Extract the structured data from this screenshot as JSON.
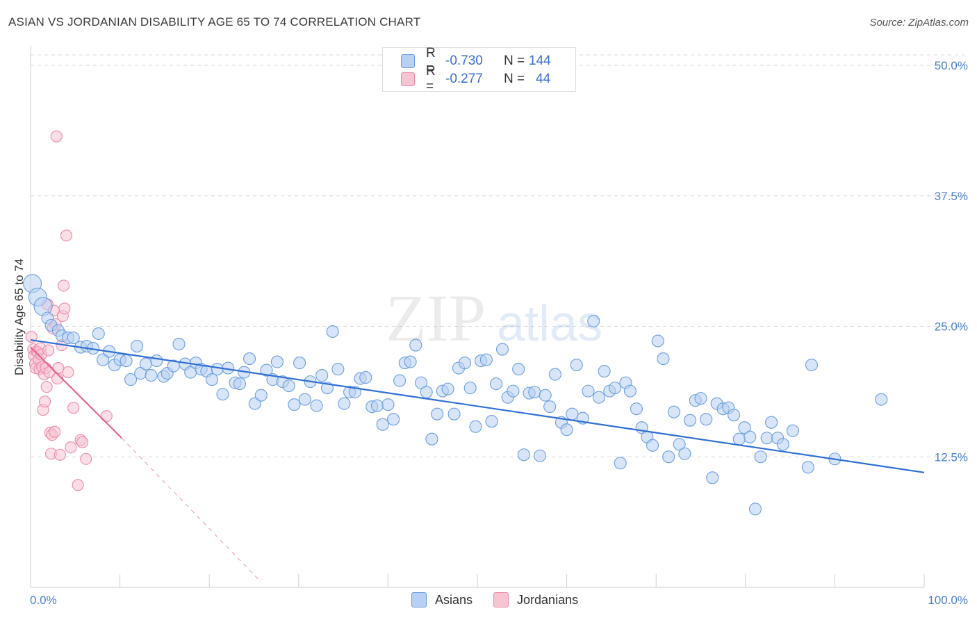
{
  "header": {
    "title": "ASIAN VS JORDANIAN DISABILITY AGE 65 TO 74 CORRELATION CHART",
    "source": "Source: ZipAtlas.com"
  },
  "colors": {
    "asian_fill": "#b8d0f3",
    "asian_stroke": "#6a9ee0",
    "asian_line": "#2f6fd4",
    "jordan_fill": "#f7c4d2",
    "jordan_stroke": "#ec8aa8",
    "jordan_line": "#e46491",
    "tick": "#4a7fd0",
    "grid": "#d8d8d8"
  },
  "legend": {
    "rows": [
      {
        "r_label": "R =",
        "r_value": "-0.730",
        "n_label": "N =",
        "n_value": "144"
      },
      {
        "r_label": "R =",
        "r_value": "-0.277",
        "n_label": "N =",
        "n_value": "44"
      }
    ]
  },
  "bottom_legend": {
    "asians": "Asians",
    "jordanians": "Jordanians"
  },
  "watermark": {
    "zip": "ZIP",
    "atlas": "atlas"
  },
  "chart_data": {
    "type": "scatter",
    "title": "ASIAN VS JORDANIAN DISABILITY AGE 65 TO 74 CORRELATION CHART",
    "ylabel": "Disability Age 65 to 74",
    "xlabel": "",
    "xlim": [
      0,
      100
    ],
    "ylim": [
      0,
      51
    ],
    "x_ticks": [
      {
        "value": 0,
        "label": "0.0%"
      },
      {
        "value": 100,
        "label": "100.0%"
      }
    ],
    "y_ticks": [
      {
        "value": 12.5,
        "label": "12.5%"
      },
      {
        "value": 25.0,
        "label": "25.0%"
      },
      {
        "value": 37.5,
        "label": "37.5%"
      },
      {
        "value": 50.0,
        "label": "50.0%"
      }
    ],
    "grid": true,
    "legend_position": "top-center",
    "series": [
      {
        "name": "Asians",
        "r": -0.73,
        "n": 144,
        "trend": {
          "x": [
            0,
            100
          ],
          "y": [
            23.7,
            11.0
          ]
        },
        "points": [
          [
            0.2,
            29.1
          ],
          [
            0.8,
            27.8
          ],
          [
            1.4,
            26.9
          ],
          [
            1.9,
            25.8
          ],
          [
            2.3,
            25.1
          ],
          [
            3.1,
            24.6
          ],
          [
            3.5,
            24.1
          ],
          [
            4.2,
            23.9
          ],
          [
            4.8,
            23.9
          ],
          [
            5.6,
            23.0
          ],
          [
            6.3,
            23.1
          ],
          [
            7.0,
            22.9
          ],
          [
            7.6,
            24.3
          ],
          [
            8.1,
            21.8
          ],
          [
            8.8,
            22.6
          ],
          [
            9.4,
            21.3
          ],
          [
            10.0,
            21.8
          ],
          [
            10.7,
            21.7
          ],
          [
            11.2,
            19.9
          ],
          [
            11.9,
            23.1
          ],
          [
            12.3,
            20.5
          ],
          [
            12.9,
            21.4
          ],
          [
            13.5,
            20.3
          ],
          [
            14.1,
            21.7
          ],
          [
            14.9,
            20.2
          ],
          [
            15.3,
            20.5
          ],
          [
            16.0,
            21.2
          ],
          [
            16.6,
            23.3
          ],
          [
            17.3,
            21.4
          ],
          [
            17.9,
            20.6
          ],
          [
            18.5,
            21.5
          ],
          [
            19.1,
            20.9
          ],
          [
            19.7,
            20.7
          ],
          [
            20.3,
            19.9
          ],
          [
            20.9,
            20.9
          ],
          [
            21.5,
            18.5
          ],
          [
            22.1,
            21.0
          ],
          [
            22.9,
            19.6
          ],
          [
            23.4,
            19.5
          ],
          [
            23.9,
            20.6
          ],
          [
            24.5,
            21.9
          ],
          [
            25.1,
            17.6
          ],
          [
            25.8,
            18.4
          ],
          [
            26.4,
            20.8
          ],
          [
            27.1,
            19.9
          ],
          [
            27.6,
            21.6
          ],
          [
            28.2,
            19.7
          ],
          [
            28.9,
            19.3
          ],
          [
            29.5,
            17.5
          ],
          [
            30.1,
            21.5
          ],
          [
            30.7,
            18.0
          ],
          [
            31.3,
            19.7
          ],
          [
            32.0,
            17.4
          ],
          [
            32.6,
            20.3
          ],
          [
            33.2,
            19.1
          ],
          [
            33.8,
            24.5
          ],
          [
            34.4,
            20.9
          ],
          [
            35.1,
            17.6
          ],
          [
            35.7,
            18.7
          ],
          [
            36.3,
            18.7
          ],
          [
            36.9,
            20.0
          ],
          [
            37.5,
            20.1
          ],
          [
            38.2,
            17.3
          ],
          [
            38.8,
            17.4
          ],
          [
            39.4,
            15.6
          ],
          [
            40.0,
            17.5
          ],
          [
            40.6,
            16.1
          ],
          [
            41.3,
            19.8
          ],
          [
            41.9,
            21.5
          ],
          [
            42.5,
            21.6
          ],
          [
            43.1,
            23.2
          ],
          [
            43.7,
            19.6
          ],
          [
            44.3,
            18.7
          ],
          [
            44.9,
            14.2
          ],
          [
            45.5,
            16.6
          ],
          [
            46.1,
            18.8
          ],
          [
            46.7,
            19.0
          ],
          [
            47.4,
            16.6
          ],
          [
            47.9,
            21.0
          ],
          [
            48.6,
            21.5
          ],
          [
            49.2,
            19.1
          ],
          [
            49.8,
            15.4
          ],
          [
            50.4,
            21.7
          ],
          [
            51.0,
            21.8
          ],
          [
            51.6,
            15.9
          ],
          [
            52.1,
            19.5
          ],
          [
            52.8,
            22.8
          ],
          [
            53.4,
            18.2
          ],
          [
            54.0,
            18.8
          ],
          [
            54.6,
            20.9
          ],
          [
            55.2,
            12.7
          ],
          [
            55.8,
            18.6
          ],
          [
            56.4,
            18.7
          ],
          [
            57.0,
            12.6
          ],
          [
            57.6,
            18.4
          ],
          [
            58.1,
            17.3
          ],
          [
            58.7,
            20.4
          ],
          [
            59.4,
            15.8
          ],
          [
            60.0,
            15.1
          ],
          [
            60.6,
            16.6
          ],
          [
            61.1,
            21.3
          ],
          [
            61.8,
            16.2
          ],
          [
            62.4,
            18.8
          ],
          [
            63.0,
            25.5
          ],
          [
            63.6,
            18.2
          ],
          [
            64.2,
            20.7
          ],
          [
            64.8,
            18.8
          ],
          [
            65.4,
            19.1
          ],
          [
            66.0,
            11.9
          ],
          [
            66.6,
            19.6
          ],
          [
            67.1,
            18.8
          ],
          [
            67.8,
            17.1
          ],
          [
            68.4,
            15.3
          ],
          [
            69.0,
            14.4
          ],
          [
            69.6,
            13.6
          ],
          [
            70.2,
            23.6
          ],
          [
            70.8,
            21.9
          ],
          [
            71.4,
            12.5
          ],
          [
            72.0,
            16.8
          ],
          [
            72.6,
            13.7
          ],
          [
            73.2,
            12.8
          ],
          [
            73.8,
            16.0
          ],
          [
            74.4,
            17.9
          ],
          [
            75.0,
            18.1
          ],
          [
            75.6,
            16.1
          ],
          [
            76.3,
            10.5
          ],
          [
            76.8,
            17.6
          ],
          [
            77.5,
            17.1
          ],
          [
            78.1,
            17.2
          ],
          [
            78.7,
            16.5
          ],
          [
            79.3,
            14.2
          ],
          [
            79.9,
            15.3
          ],
          [
            80.5,
            14.4
          ],
          [
            81.1,
            7.5
          ],
          [
            81.7,
            12.5
          ],
          [
            82.4,
            14.3
          ],
          [
            82.9,
            15.8
          ],
          [
            83.6,
            14.3
          ],
          [
            84.2,
            13.7
          ],
          [
            85.3,
            15.0
          ],
          [
            87.0,
            11.5
          ],
          [
            87.4,
            21.3
          ],
          [
            90.0,
            12.3
          ],
          [
            95.2,
            18.0
          ]
        ]
      },
      {
        "name": "Jordanians",
        "r": -0.277,
        "n": 44,
        "trend": {
          "x": [
            0,
            10.2
          ],
          "y": [
            23.0,
            14.3
          ],
          "dashed_to": {
            "x": 25.8,
            "y": 0.5
          }
        },
        "points": [
          [
            0.1,
            24.0
          ],
          [
            0.3,
            22.8
          ],
          [
            0.4,
            22.2
          ],
          [
            0.5,
            21.4
          ],
          [
            0.6,
            21.0
          ],
          [
            0.7,
            22.6
          ],
          [
            0.8,
            22.5
          ],
          [
            0.9,
            21.8
          ],
          [
            1.0,
            20.9
          ],
          [
            1.1,
            22.9
          ],
          [
            1.2,
            22.3
          ],
          [
            1.3,
            21.1
          ],
          [
            1.4,
            17.0
          ],
          [
            1.5,
            20.4
          ],
          [
            1.6,
            17.8
          ],
          [
            1.7,
            21.0
          ],
          [
            1.8,
            19.2
          ],
          [
            1.9,
            27.1
          ],
          [
            2.0,
            22.7
          ],
          [
            2.1,
            20.6
          ],
          [
            2.2,
            14.8
          ],
          [
            2.3,
            12.8
          ],
          [
            2.4,
            14.6
          ],
          [
            2.5,
            24.8
          ],
          [
            2.6,
            26.5
          ],
          [
            2.7,
            14.9
          ],
          [
            2.8,
            25.2
          ],
          [
            2.9,
            43.2
          ],
          [
            3.0,
            20.0
          ],
          [
            3.1,
            21.0
          ],
          [
            3.3,
            12.7
          ],
          [
            3.5,
            23.2
          ],
          [
            3.6,
            26.0
          ],
          [
            3.7,
            28.9
          ],
          [
            3.8,
            26.7
          ],
          [
            4.0,
            33.7
          ],
          [
            4.2,
            20.6
          ],
          [
            4.5,
            13.4
          ],
          [
            4.8,
            17.2
          ],
          [
            5.3,
            9.8
          ],
          [
            5.6,
            14.1
          ],
          [
            5.8,
            13.9
          ],
          [
            6.2,
            12.3
          ],
          [
            8.5,
            16.4
          ]
        ]
      }
    ]
  }
}
